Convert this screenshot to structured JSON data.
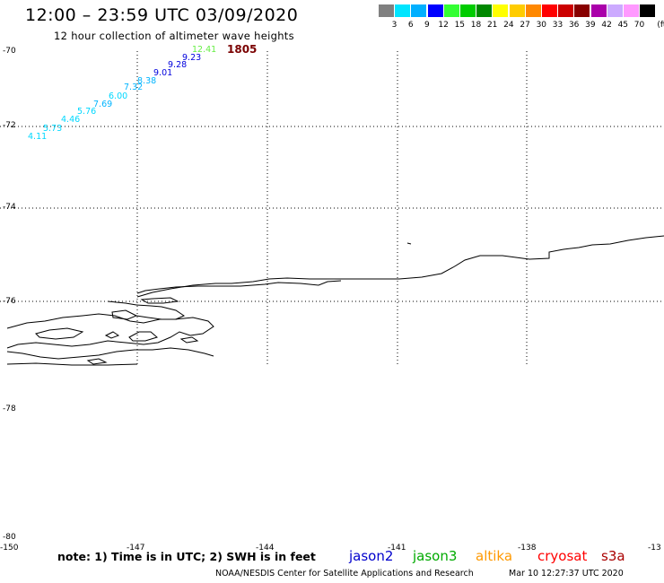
{
  "header": {
    "title": "12:00 – 23:59 UTC 03/09/2020",
    "subtitle": "12 hour collection of altimeter wave heights"
  },
  "legend": {
    "unit": "(ft)",
    "colors": [
      "#808080",
      "#00e5ff",
      "#00b0ff",
      "#0000ff",
      "#33ff33",
      "#00cc00",
      "#008800",
      "#ffff00",
      "#ffcc00",
      "#ff8800",
      "#ff0000",
      "#cc0000",
      "#880000",
      "#aa00aa",
      "#ccaaff",
      "#ff99ff",
      "#000000"
    ],
    "values": [
      "3",
      "6",
      "9",
      "12",
      "15",
      "18",
      "21",
      "24",
      "27",
      "30",
      "33",
      "36",
      "39",
      "42",
      "45",
      "70"
    ]
  },
  "map": {
    "lat_labels": [
      "-70",
      "-72",
      "-74",
      "-76",
      "-78",
      "-80"
    ],
    "lon_labels": [
      "-150",
      "-147",
      "-144",
      "-141",
      "-138",
      "-13"
    ],
    "pass_id": "1805",
    "observations": [
      {
        "value": "4.11",
        "color": "#00d8ff"
      },
      {
        "value": "5.73",
        "color": "#00d8ff"
      },
      {
        "value": "4.46",
        "color": "#00d8ff"
      },
      {
        "value": "5.76",
        "color": "#00d8ff"
      },
      {
        "value": "7.69",
        "color": "#00b4ff"
      },
      {
        "value": "6.00",
        "color": "#00d8ff"
      },
      {
        "value": "7.32",
        "color": "#00b4ff"
      },
      {
        "value": "8.38",
        "color": "#00b4ff"
      },
      {
        "value": "9.01",
        "color": "#0000dd"
      },
      {
        "value": "9.28",
        "color": "#0000dd"
      },
      {
        "value": "9.23",
        "color": "#0000dd"
      },
      {
        "value": "12.41",
        "color": "#66ee44"
      }
    ]
  },
  "note": "note: 1) Time is in UTC; 2) SWH is in feet",
  "satellites": [
    {
      "name": "jason2",
      "color": "#0000cc"
    },
    {
      "name": "jason3",
      "color": "#00aa00"
    },
    {
      "name": "altika",
      "color": "#ff9900"
    },
    {
      "name": "cryosat",
      "color": "#ff0000"
    },
    {
      "name": "s3a",
      "color": "#aa0000"
    }
  ],
  "footer": {
    "credit": "NOAA/NESDIS Center for Satellite Applications and Research",
    "timestamp": "Mar 10 12:27:37 UTC 2020"
  }
}
